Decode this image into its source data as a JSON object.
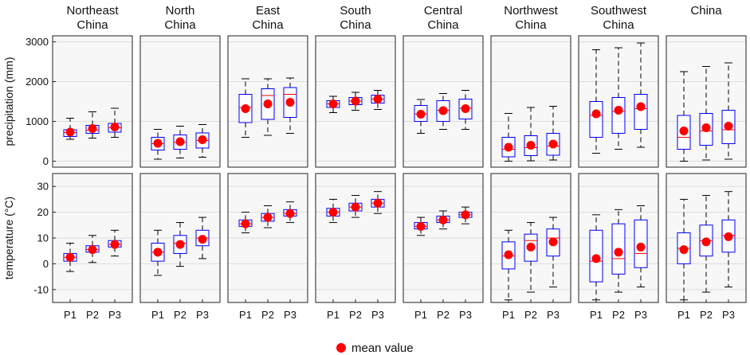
{
  "chart_data": {
    "type": "box",
    "regions": [
      "Northeast China",
      "North China",
      "East China",
      "South China",
      "Central China",
      "Northwest China",
      "Southwest China",
      "China"
    ],
    "categories": [
      "P1",
      "P2",
      "P3"
    ],
    "legend": {
      "label": "mean value",
      "position": "bottom-center",
      "color": "#ff0000"
    },
    "colors": {
      "box": "#0000ff",
      "median": "#ff0000",
      "whisker": "#000000",
      "mean_marker": "#ff0000",
      "panel_bg": "#f7f7f7",
      "grid": "#dddddd"
    },
    "rows": [
      {
        "ylabel": "precipitation (mm)",
        "ylim": [
          -150,
          3150
        ],
        "yticks": [
          0,
          1000,
          2000,
          3000
        ],
        "grid": true,
        "regions": [
          {
            "region": "Northeast China",
            "boxes": [
              {
                "category": "P1",
                "whisker_low": 550,
                "q1": 620,
                "median": 720,
                "q3": 790,
                "whisker_high": 1080,
                "mean": 730
              },
              {
                "category": "P2",
                "whisker_low": 580,
                "q1": 700,
                "median": 780,
                "q3": 900,
                "whisker_high": 1240,
                "mean": 820
              },
              {
                "category": "P3",
                "whisker_low": 600,
                "q1": 730,
                "median": 840,
                "q3": 950,
                "whisker_high": 1330,
                "mean": 860
              }
            ]
          },
          {
            "region": "North China",
            "boxes": [
              {
                "category": "P1",
                "whisker_low": 50,
                "q1": 280,
                "median": 440,
                "q3": 600,
                "whisker_high": 800,
                "mean": 450
              },
              {
                "category": "P2",
                "whisker_low": 80,
                "q1": 300,
                "median": 470,
                "q3": 660,
                "whisker_high": 880,
                "mean": 490
              },
              {
                "category": "P3",
                "whisker_low": 100,
                "q1": 330,
                "median": 520,
                "q3": 710,
                "whisker_high": 920,
                "mean": 540
              }
            ]
          },
          {
            "region": "East China",
            "boxes": [
              {
                "category": "P1",
                "whisker_low": 600,
                "q1": 970,
                "median": 1350,
                "q3": 1680,
                "whisker_high": 2070,
                "mean": 1320
              },
              {
                "category": "P2",
                "whisker_low": 650,
                "q1": 1050,
                "median": 1650,
                "q3": 1820,
                "whisker_high": 2070,
                "mean": 1440
              },
              {
                "category": "P3",
                "whisker_low": 700,
                "q1": 1100,
                "median": 1680,
                "q3": 1850,
                "whisker_high": 2090,
                "mean": 1480
              }
            ]
          },
          {
            "region": "South China",
            "boxes": [
              {
                "category": "P1",
                "whisker_low": 1220,
                "q1": 1350,
                "median": 1440,
                "q3": 1520,
                "whisker_high": 1630,
                "mean": 1440
              },
              {
                "category": "P2",
                "whisker_low": 1280,
                "q1": 1420,
                "median": 1510,
                "q3": 1600,
                "whisker_high": 1730,
                "mean": 1510
              },
              {
                "category": "P3",
                "whisker_low": 1300,
                "q1": 1460,
                "median": 1560,
                "q3": 1660,
                "whisker_high": 1780,
                "mean": 1560
              }
            ]
          },
          {
            "region": "Central China",
            "boxes": [
              {
                "category": "P1",
                "whisker_low": 700,
                "q1": 1000,
                "median": 1190,
                "q3": 1400,
                "whisker_high": 1550,
                "mean": 1180
              },
              {
                "category": "P2",
                "whisker_low": 800,
                "q1": 1000,
                "median": 1280,
                "q3": 1520,
                "whisker_high": 1700,
                "mean": 1270
              },
              {
                "category": "P3",
                "whisker_low": 800,
                "q1": 1060,
                "median": 1330,
                "q3": 1560,
                "whisker_high": 1780,
                "mean": 1320
              }
            ]
          },
          {
            "region": "Northwest China",
            "boxes": [
              {
                "category": "P1",
                "whisker_low": 0,
                "q1": 110,
                "median": 300,
                "q3": 600,
                "whisker_high": 1200,
                "mean": 350
              },
              {
                "category": "P2",
                "whisker_low": 10,
                "q1": 140,
                "median": 340,
                "q3": 640,
                "whisker_high": 1350,
                "mean": 400
              },
              {
                "category": "P3",
                "whisker_low": 30,
                "q1": 150,
                "median": 380,
                "q3": 700,
                "whisker_high": 1380,
                "mean": 430
              }
            ]
          },
          {
            "region": "Southwest China",
            "boxes": [
              {
                "category": "P1",
                "whisker_low": 200,
                "q1": 600,
                "median": 1150,
                "q3": 1500,
                "whisker_high": 2800,
                "mean": 1190
              },
              {
                "category": "P2",
                "whisker_low": 300,
                "q1": 700,
                "median": 1250,
                "q3": 1600,
                "whisker_high": 2850,
                "mean": 1280
              },
              {
                "category": "P3",
                "whisker_low": 350,
                "q1": 800,
                "median": 1320,
                "q3": 1680,
                "whisker_high": 2970,
                "mean": 1370
              }
            ]
          },
          {
            "region": "China",
            "boxes": [
              {
                "category": "P1",
                "whisker_low": 0,
                "q1": 300,
                "median": 600,
                "q3": 1150,
                "whisker_high": 2250,
                "mean": 760
              },
              {
                "category": "P2",
                "whisker_low": 30,
                "q1": 400,
                "median": 760,
                "q3": 1200,
                "whisker_high": 2380,
                "mean": 840
              },
              {
                "category": "P3",
                "whisker_low": 50,
                "q1": 440,
                "median": 790,
                "q3": 1280,
                "whisker_high": 2470,
                "mean": 880
              }
            ]
          }
        ]
      },
      {
        "ylabel": "temperature (°C)",
        "ylim": [
          -15,
          35
        ],
        "yticks": [
          -10,
          0,
          10,
          20,
          30
        ],
        "grid": true,
        "regions": [
          {
            "region": "Northeast China",
            "boxes": [
              {
                "category": "P1",
                "whisker_low": -3,
                "q1": 1,
                "median": 2.5,
                "q3": 4,
                "whisker_high": 8,
                "mean": 2.5
              },
              {
                "category": "P2",
                "whisker_low": 0.5,
                "q1": 4.5,
                "median": 5.5,
                "q3": 7,
                "whisker_high": 11,
                "mean": 5.5
              },
              {
                "category": "P3",
                "whisker_low": 3,
                "q1": 6.5,
                "median": 7.5,
                "q3": 9,
                "whisker_high": 13,
                "mean": 7.5
              }
            ]
          },
          {
            "region": "North China",
            "boxes": [
              {
                "category": "P1",
                "whisker_low": -4.5,
                "q1": 1,
                "median": 4.5,
                "q3": 8,
                "whisker_high": 13,
                "mean": 4.5
              },
              {
                "category": "P2",
                "whisker_low": -1,
                "q1": 4,
                "median": 8,
                "q3": 11,
                "whisker_high": 16,
                "mean": 7.5
              },
              {
                "category": "P3",
                "whisker_low": 2,
                "q1": 7,
                "median": 10,
                "q3": 13,
                "whisker_high": 18,
                "mean": 9.5
              }
            ]
          },
          {
            "region": "East China",
            "boxes": [
              {
                "category": "P1",
                "whisker_low": 12,
                "q1": 14.5,
                "median": 15.5,
                "q3": 17,
                "whisker_high": 20,
                "mean": 15.5
              },
              {
                "category": "P2",
                "whisker_low": 14,
                "q1": 16.5,
                "median": 18,
                "q3": 19.5,
                "whisker_high": 22.5,
                "mean": 18
              },
              {
                "category": "P3",
                "whisker_low": 16,
                "q1": 18.5,
                "median": 19.5,
                "q3": 21,
                "whisker_high": 24,
                "mean": 19.5
              }
            ]
          },
          {
            "region": "South China",
            "boxes": [
              {
                "category": "P1",
                "whisker_low": 16,
                "q1": 18.5,
                "median": 20,
                "q3": 21.5,
                "whisker_high": 25,
                "mean": 20
              },
              {
                "category": "P2",
                "whisker_low": 18,
                "q1": 20.5,
                "median": 22,
                "q3": 23.5,
                "whisker_high": 26.5,
                "mean": 22
              },
              {
                "category": "P3",
                "whisker_low": 19.5,
                "q1": 22,
                "median": 23.5,
                "q3": 25,
                "whisker_high": 28,
                "mean": 23.5
              }
            ]
          },
          {
            "region": "Central China",
            "boxes": [
              {
                "category": "P1",
                "whisker_low": 11,
                "q1": 13.5,
                "median": 14.5,
                "q3": 16,
                "whisker_high": 18,
                "mean": 14.5
              },
              {
                "category": "P2",
                "whisker_low": 13.5,
                "q1": 16,
                "median": 17,
                "q3": 18.5,
                "whisker_high": 20.5,
                "mean": 17
              },
              {
                "category": "P3",
                "whisker_low": 15.5,
                "q1": 18,
                "median": 19,
                "q3": 20,
                "whisker_high": 22,
                "mean": 19
              }
            ]
          },
          {
            "region": "Northwest China",
            "boxes": [
              {
                "category": "P1",
                "whisker_low": -14,
                "q1": -2,
                "median": 3,
                "q3": 8.5,
                "whisker_high": 13,
                "mean": 3.5
              },
              {
                "category": "P2",
                "whisker_low": -11,
                "q1": 1,
                "median": 9,
                "q3": 11.5,
                "whisker_high": 16,
                "mean": 6.5
              },
              {
                "category": "P3",
                "whisker_low": -9,
                "q1": 3,
                "median": 10,
                "q3": 13.5,
                "whisker_high": 18,
                "mean": 8.5
              }
            ]
          },
          {
            "region": "Southwest China",
            "boxes": [
              {
                "category": "P1",
                "whisker_low": -14,
                "q1": -7,
                "median": 1,
                "q3": 13,
                "whisker_high": 19,
                "mean": 2
              },
              {
                "category": "P2",
                "whisker_low": -11,
                "q1": -4,
                "median": 2,
                "q3": 15.5,
                "whisker_high": 21,
                "mean": 4.5
              },
              {
                "category": "P3",
                "whisker_low": -9,
                "q1": -1.5,
                "median": 4,
                "q3": 17,
                "whisker_high": 22.5,
                "mean": 6.5
              }
            ]
          },
          {
            "region": "China",
            "boxes": [
              {
                "category": "P1",
                "whisker_low": -14,
                "q1": 0,
                "median": 6,
                "q3": 12,
                "whisker_high": 25,
                "mean": 5.5
              },
              {
                "category": "P2",
                "whisker_low": -11,
                "q1": 3,
                "median": 9,
                "q3": 15,
                "whisker_high": 26.5,
                "mean": 8.5
              },
              {
                "category": "P3",
                "whisker_low": -9,
                "q1": 4.5,
                "median": 11,
                "q3": 17,
                "whisker_high": 28,
                "mean": 10.5
              }
            ]
          }
        ]
      }
    ]
  }
}
